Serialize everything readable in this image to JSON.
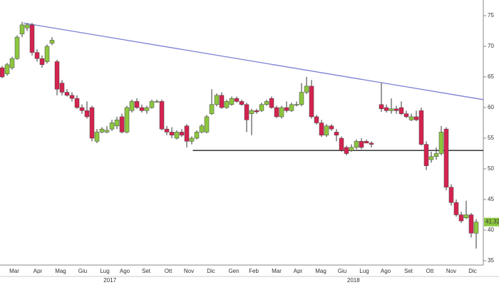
{
  "chart_data": {
    "type": "candlestick",
    "up_color": "#8cc63f",
    "down_color": "#d4234f",
    "x": [
      0,
      1,
      2,
      3,
      4,
      5,
      6,
      7,
      8,
      9,
      10,
      11,
      12,
      13,
      14,
      15,
      16,
      17,
      18,
      19,
      20,
      21,
      22,
      23,
      24,
      25,
      26,
      27,
      28,
      29,
      30,
      31,
      32,
      33,
      34,
      35,
      36,
      37,
      38,
      39,
      40,
      41,
      42,
      43,
      44,
      45,
      46,
      47,
      48,
      49,
      50,
      51,
      52,
      53,
      54,
      55,
      56,
      57,
      58,
      59,
      60,
      61,
      62,
      63,
      64,
      65,
      66,
      67,
      68,
      69,
      70,
      71,
      72,
      73,
      74,
      76,
      77,
      78,
      79,
      80,
      81,
      82,
      83,
      84,
      85,
      86,
      87,
      88,
      89,
      90,
      91,
      92,
      93,
      94,
      95
    ],
    "open": [
      66.5,
      65.5,
      66.5,
      68.0,
      72.0,
      73.0,
      73.5,
      69.0,
      68.0,
      67.5,
      70.5,
      67.5,
      64.0,
      62.5,
      62.0,
      61.5,
      60.0,
      59.5,
      60.0,
      54.5,
      56.0,
      56.0,
      56.5,
      57.0,
      58.5,
      56.0,
      59.5,
      61.0,
      60.0,
      59.5,
      60.0,
      61.0,
      61.0,
      56.5,
      56.0,
      55.0,
      56.0,
      57.0,
      54.5,
      55.0,
      56.0,
      56.0,
      59.0,
      60.5,
      62.0,
      60.0,
      60.5,
      61.5,
      61.0,
      60.5,
      59.0,
      59.5,
      59.5,
      60.5,
      61.5,
      60.0,
      58.5,
      60.0,
      59.5,
      60.5,
      60.5,
      62.5,
      63.5,
      58.5,
      57.5,
      55.5,
      57.0,
      56.0,
      55.0,
      53.5,
      53.0,
      53.5,
      54.5,
      54.5,
      54.2,
      60.5,
      60.0,
      59.5,
      59.8,
      60.0,
      59.0,
      58.0,
      58.5,
      59.5,
      54.0,
      51.5,
      52.0,
      52.5,
      56.5,
      47.0,
      44.5,
      42.5,
      42.0,
      42.5,
      39.5
    ],
    "high": [
      66.8,
      67.3,
      68.3,
      71.8,
      74.0,
      73.8,
      73.8,
      69.5,
      68.5,
      70.3,
      71.5,
      67.8,
      64.5,
      63.0,
      62.5,
      62.0,
      60.5,
      61.0,
      60.3,
      56.5,
      56.8,
      57.0,
      58.0,
      58.5,
      59.0,
      60.3,
      61.3,
      61.5,
      60.5,
      60.3,
      61.3,
      61.3,
      61.3,
      57.0,
      56.8,
      56.3,
      56.5,
      57.3,
      55.3,
      56.3,
      57.3,
      58.8,
      63.0,
      62.3,
      62.5,
      61.3,
      61.8,
      61.8,
      61.3,
      60.8,
      59.8,
      59.8,
      60.8,
      61.3,
      61.8,
      60.3,
      60.3,
      61.0,
      60.8,
      61.0,
      64.0,
      65.0,
      64.5,
      58.8,
      58.0,
      57.3,
      57.3,
      56.5,
      55.3,
      53.8,
      54.0,
      54.8,
      55.0,
      54.8,
      54.5,
      64.0,
      60.5,
      61.5,
      60.3,
      61.0,
      59.5,
      59.0,
      59.5,
      60.0,
      54.5,
      52.8,
      53.5,
      57.0,
      56.8,
      47.5,
      45.0,
      43.0,
      44.8,
      42.8,
      41.8
    ],
    "low": [
      64.8,
      65.2,
      66.2,
      67.8,
      71.5,
      72.5,
      68.5,
      67.5,
      66.5,
      67.2,
      70.2,
      62.0,
      62.0,
      61.8,
      61.0,
      59.8,
      59.0,
      58.2,
      54.5,
      54.2,
      55.8,
      55.8,
      56.2,
      56.5,
      55.8,
      55.8,
      59.2,
      59.8,
      59.2,
      59.0,
      59.8,
      60.8,
      56.3,
      55.5,
      55.0,
      54.8,
      55.2,
      53.5,
      54.0,
      54.8,
      55.8,
      55.8,
      58.8,
      60.2,
      59.8,
      59.8,
      60.3,
      60.8,
      60.3,
      56.0,
      55.5,
      59.0,
      59.3,
      60.3,
      59.8,
      58.3,
      58.2,
      59.2,
      59.3,
      60.2,
      60.2,
      62.2,
      58.2,
      57.2,
      55.2,
      55.2,
      56.2,
      54.5,
      52.8,
      52.2,
      52.8,
      53.2,
      53.2,
      54.2,
      53.5,
      59.3,
      59.2,
      59.0,
      59.0,
      58.8,
      58.3,
      57.8,
      57.8,
      53.8,
      49.8,
      51.0,
      51.5,
      52.2,
      46.5,
      44.0,
      42.2,
      41.2,
      41.8,
      38.8,
      37.0
    ],
    "close": [
      65.0,
      67.0,
      68.0,
      71.5,
      73.5,
      73.5,
      69.0,
      68.0,
      67.0,
      70.0,
      71.0,
      63.0,
      62.5,
      62.0,
      61.5,
      60.0,
      59.5,
      58.5,
      55.0,
      56.0,
      56.5,
      56.3,
      57.5,
      58.0,
      56.0,
      60.0,
      61.0,
      60.0,
      59.5,
      60.0,
      61.0,
      61.0,
      56.5,
      56.0,
      55.5,
      56.0,
      55.5,
      54.5,
      55.0,
      56.0,
      57.0,
      58.5,
      60.5,
      62.0,
      60.0,
      61.0,
      61.5,
      61.0,
      60.5,
      58.0,
      59.5,
      59.3,
      60.5,
      61.0,
      60.0,
      58.5,
      60.0,
      59.5,
      60.5,
      60.5,
      62.5,
      63.5,
      58.5,
      57.5,
      55.5,
      57.0,
      56.5,
      55.5,
      53.0,
      52.5,
      53.5,
      54.5,
      53.5,
      54.2,
      54.0,
      59.8,
      59.5,
      59.8,
      59.5,
      59.0,
      58.5,
      58.5,
      58.0,
      54.0,
      50.5,
      52.0,
      52.5,
      56.0,
      47.0,
      44.5,
      42.5,
      41.5,
      42.5,
      39.5,
      41.32
    ],
    "xlim": [
      -0.43,
      96.43
    ],
    "xticks": [
      {
        "value": 2.43,
        "label": "Mar"
      },
      {
        "value": 7.14,
        "label": "Apr"
      },
      {
        "value": 11.71,
        "label": "Mag"
      },
      {
        "value": 16.14,
        "label": "Giu"
      },
      {
        "value": 20.57,
        "label": "Lug"
      },
      {
        "value": 24.57,
        "label": "Ago"
      },
      {
        "value": 28.86,
        "label": "Set"
      },
      {
        "value": 33.29,
        "label": "Ott"
      },
      {
        "value": 37.43,
        "label": "Nov"
      },
      {
        "value": 41.86,
        "label": "Dic"
      },
      {
        "value": 46.43,
        "label": "Gen"
      },
      {
        "value": 50.43,
        "label": "Feb"
      },
      {
        "value": 55,
        "label": "Mar"
      },
      {
        "value": 59.29,
        "label": "Apr"
      },
      {
        "value": 63.86,
        "label": "Mag"
      },
      {
        "value": 68.14,
        "label": "Giu"
      },
      {
        "value": 72.57,
        "label": "Lug"
      },
      {
        "value": 76.86,
        "label": "Ago"
      },
      {
        "value": 81.43,
        "label": "Set"
      },
      {
        "value": 85.71,
        "label": "Ott"
      },
      {
        "value": 90,
        "label": "Nov"
      },
      {
        "value": 94.29,
        "label": "Dic"
      }
    ],
    "year_labels": [
      {
        "value": 21.6,
        "label": "2017"
      },
      {
        "value": 70.4,
        "label": "2018"
      }
    ],
    "ylim": [
      34.3,
      77.56
    ],
    "yticks": [
      35,
      40,
      45,
      50,
      55,
      60,
      65,
      70,
      75
    ],
    "trendline": {
      "x": [
        4.3,
        96.43
      ],
      "y": [
        73.8,
        61.3
      ],
      "color": "#7b7fd1"
    },
    "support": {
      "x": [
        38.2,
        96.43
      ],
      "y": [
        53,
        53
      ],
      "color": "#222222"
    },
    "last_price_color": "#8cc63f"
  }
}
